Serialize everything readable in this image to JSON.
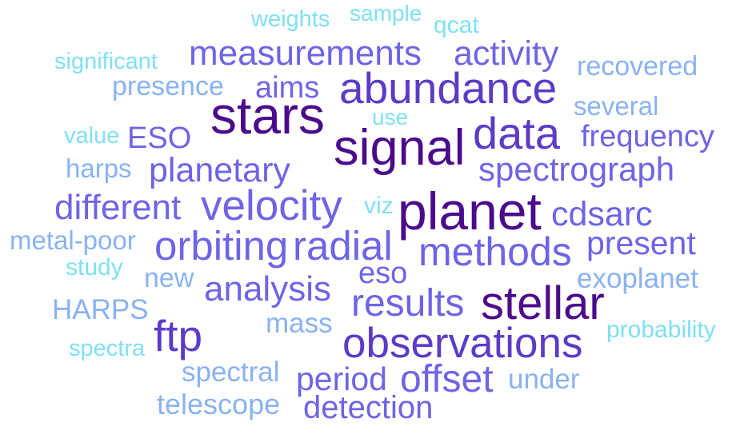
{
  "colors": {
    "darkest": "#4b0a8c",
    "dark": "#5c3bc7",
    "mid": "#6e64e6",
    "light": "#7f8ff0",
    "lighter": "#89b2f2",
    "lightest": "#7fe0f2"
  },
  "words": [
    {
      "text": "weights",
      "color": "lightest"
    },
    {
      "text": "sample",
      "color": "lightest"
    },
    {
      "text": "qcat",
      "color": "lightest"
    },
    {
      "text": "measurements",
      "color": "mid"
    },
    {
      "text": "activity",
      "color": "mid"
    },
    {
      "text": "significant",
      "color": "lightest"
    },
    {
      "text": "recovered",
      "color": "lighter"
    },
    {
      "text": "abundance",
      "color": "dark"
    },
    {
      "text": "presence",
      "color": "lighter"
    },
    {
      "text": "aims",
      "color": "mid"
    },
    {
      "text": "stars",
      "color": "darkest"
    },
    {
      "text": "several",
      "color": "lighter"
    },
    {
      "text": "use",
      "color": "lightest"
    },
    {
      "text": "data",
      "color": "dark"
    },
    {
      "text": "value",
      "color": "lightest"
    },
    {
      "text": "ESO",
      "color": "mid"
    },
    {
      "text": "signal",
      "color": "darkest"
    },
    {
      "text": "frequency",
      "color": "mid"
    },
    {
      "text": "harps",
      "color": "lighter"
    },
    {
      "text": "planetary",
      "color": "mid"
    },
    {
      "text": "spectrograph",
      "color": "mid"
    },
    {
      "text": "different",
      "color": "mid"
    },
    {
      "text": "velocity",
      "color": "mid"
    },
    {
      "text": "viz",
      "color": "lightest"
    },
    {
      "text": "planet",
      "color": "darkest"
    },
    {
      "text": "cdsarc",
      "color": "mid"
    },
    {
      "text": "metal-poor",
      "color": "lighter"
    },
    {
      "text": "orbiting",
      "color": "mid"
    },
    {
      "text": "radial",
      "color": "mid"
    },
    {
      "text": "present",
      "color": "mid"
    },
    {
      "text": "methods",
      "color": "mid"
    },
    {
      "text": "study",
      "color": "lightest"
    },
    {
      "text": "new",
      "color": "lighter"
    },
    {
      "text": "eso",
      "color": "mid"
    },
    {
      "text": "exoplanet",
      "color": "lighter"
    },
    {
      "text": "analysis",
      "color": "mid"
    },
    {
      "text": "HARPS",
      "color": "lighter"
    },
    {
      "text": "results",
      "color": "mid"
    },
    {
      "text": "stellar",
      "color": "darkest"
    },
    {
      "text": "ftp",
      "color": "dark"
    },
    {
      "text": "mass",
      "color": "lighter"
    },
    {
      "text": "probability",
      "color": "lightest"
    },
    {
      "text": "spectra",
      "color": "lightest"
    },
    {
      "text": "observations",
      "color": "dark"
    },
    {
      "text": "spectral",
      "color": "lighter"
    },
    {
      "text": "period",
      "color": "mid"
    },
    {
      "text": "offset",
      "color": "mid"
    },
    {
      "text": "under",
      "color": "lighter"
    },
    {
      "text": "telescope",
      "color": "lighter"
    },
    {
      "text": "detection",
      "color": "mid"
    }
  ]
}
